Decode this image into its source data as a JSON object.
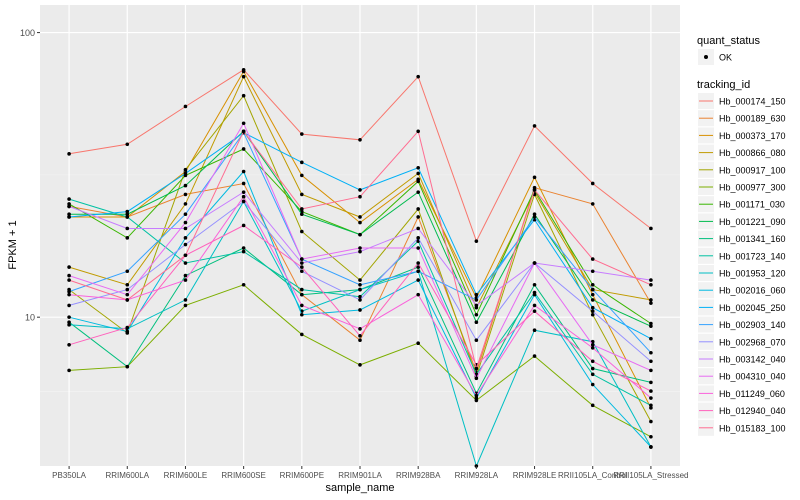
{
  "chart_data": {
    "type": "line",
    "xlabel": "sample_name",
    "ylabel": "FPKM + 1",
    "y_scale": "log10",
    "ylim": [
      3.0,
      125
    ],
    "yticks": [
      {
        "value": 10,
        "label": "10"
      },
      {
        "value": 100,
        "label": "100"
      }
    ],
    "grid": true,
    "legend_position": "right",
    "categories": [
      "PB350LA",
      "RRIM600LA",
      "RRIM600LE",
      "RRIM600SE",
      "RRIM600PE",
      "RRIM901LA",
      "RRIM928BA",
      "RRIM928LA",
      "RRIM928LE",
      "RRII105LA_Control",
      "RRII105LA_Stressed"
    ],
    "quant_legend": {
      "title": "quant_status",
      "items": [
        "OK"
      ]
    },
    "tracking_legend_title": "tracking_id",
    "series": [
      {
        "name": "Hb_000174_150",
        "color": "#F8766D",
        "values": [
          37.5,
          40.5,
          55,
          74,
          44,
          42,
          70,
          18.5,
          47,
          29.5,
          20.5
        ]
      },
      {
        "name": "Hb_000189_630",
        "color": "#EA8331",
        "values": [
          24.5,
          22.5,
          27,
          29.5,
          12,
          8.3,
          22.5,
          6.4,
          28.5,
          25,
          11.2
        ]
      },
      {
        "name": "Hb_000373_170",
        "color": "#D89000",
        "values": [
          22.5,
          22.5,
          32.5,
          73,
          31.5,
          21.5,
          30.5,
          11.7,
          31,
          12,
          4.8
        ]
      },
      {
        "name": "Hb_000866_080",
        "color": "#C09B00",
        "values": [
          15,
          13,
          25,
          70,
          27,
          22.5,
          32,
          10.8,
          27.5,
          12.5,
          11.5
        ]
      },
      {
        "name": "Hb_000917_100",
        "color": "#A3A500",
        "values": [
          12.5,
          8.8,
          33,
          60,
          20,
          13.5,
          24,
          6.2,
          27,
          10.2,
          4.3
        ]
      },
      {
        "name": "Hb_000977_300",
        "color": "#7CAE00",
        "values": [
          6.5,
          6.7,
          11,
          13,
          8.7,
          6.8,
          8.1,
          5.1,
          7.3,
          4.9,
          3.8
        ]
      },
      {
        "name": "Hb_001171_030",
        "color": "#39B600",
        "values": [
          25,
          19,
          31.5,
          39,
          23.5,
          19.5,
          30,
          10.2,
          28,
          13,
          9.5
        ]
      },
      {
        "name": "Hb_001221_090",
        "color": "#00BB4E",
        "values": [
          23,
          23,
          29,
          45,
          23,
          19.5,
          27.5,
          9.6,
          23,
          11.5,
          9.3
        ]
      },
      {
        "name": "Hb_001341_160",
        "color": "#00BF7D",
        "values": [
          9.6,
          6.7,
          14,
          17.5,
          12,
          12.5,
          15,
          5.4,
          13,
          6.6,
          5.9
        ]
      },
      {
        "name": "Hb_001723_140",
        "color": "#00C1A3",
        "values": [
          26,
          22.5,
          15.5,
          17,
          12.5,
          11.8,
          18.5,
          6.3,
          12.2,
          6.3,
          4.9
        ]
      },
      {
        "name": "Hb_001953_120",
        "color": "#00BFC4",
        "values": [
          9.4,
          9.1,
          11.5,
          25.5,
          10.5,
          12.5,
          14.5,
          3.0,
          9.0,
          8.2,
          3.5
        ]
      },
      {
        "name": "Hb_002016_060",
        "color": "#00BAE0",
        "values": [
          10,
          8.9,
          19,
          32.5,
          10.2,
          10.6,
          13.5,
          5.2,
          12,
          5.8,
          3.5
        ]
      },
      {
        "name": "Hb_002045_250",
        "color": "#00B0F6",
        "values": [
          22.5,
          23.5,
          32,
          44.5,
          35,
          28,
          33.5,
          12,
          22,
          10.8,
          8.4
        ]
      },
      {
        "name": "Hb_002903_140",
        "color": "#35A2FF",
        "values": [
          12.3,
          14.5,
          23,
          44.5,
          16,
          13,
          14.5,
          11.5,
          22.5,
          12.5,
          7.5
        ]
      },
      {
        "name": "Hb_002968_070",
        "color": "#9590FF",
        "values": [
          11,
          12.5,
          18,
          25.5,
          14.5,
          11.5,
          19,
          8.3,
          15.5,
          10.5,
          7
        ]
      },
      {
        "name": "Hb_003142_040",
        "color": "#C77CFF",
        "values": [
          24.5,
          20.5,
          20.5,
          27.5,
          15.5,
          17,
          20.5,
          11,
          15.5,
          14.5,
          13.5
        ]
      },
      {
        "name": "Hb_004310_040",
        "color": "#E76BF3",
        "values": [
          14,
          12,
          21.5,
          48,
          16,
          17.5,
          17.5,
          6.1,
          15.5,
          8,
          6.5
        ]
      },
      {
        "name": "Hb_011249_060",
        "color": "#FA62DB",
        "values": [
          12,
          11.5,
          13.5,
          26.5,
          11,
          9.1,
          12,
          5.3,
          11,
          7.8,
          5.2
        ]
      },
      {
        "name": "Hb_012940_040",
        "color": "#FF62BC",
        "values": [
          8,
          9.2,
          16.5,
          21,
          15,
          8.6,
          15.5,
          6.8,
          10.5,
          7,
          5.5
        ]
      },
      {
        "name": "Hb_015183_100",
        "color": "#FF6C91",
        "values": [
          13.5,
          11.5,
          16.5,
          45,
          24,
          26.5,
          45,
          6.6,
          28,
          16,
          13
        ]
      }
    ]
  }
}
